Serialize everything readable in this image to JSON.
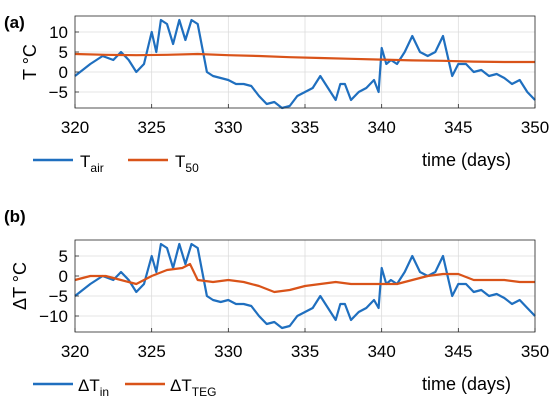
{
  "chart_data": [
    {
      "type": "line",
      "panel_label": "(a)",
      "ylabel": "T °C",
      "xlabel": "time (days)",
      "xlim": [
        320,
        350
      ],
      "ylim": [
        -9,
        14
      ],
      "xticks": [
        320,
        325,
        330,
        335,
        340,
        345,
        350
      ],
      "yticks": [
        -5,
        0,
        5,
        10
      ],
      "grid": true,
      "legend_position": "bottom-left",
      "series": [
        {
          "name": "T",
          "name_sub": "air",
          "color": "#1f6fbf",
          "x": [
            320,
            321,
            321.8,
            322.5,
            323,
            323.5,
            324,
            324.5,
            325,
            325.3,
            325.6,
            326,
            326.4,
            326.8,
            327.2,
            327.6,
            328,
            328.3,
            328.6,
            329,
            329.5,
            330,
            330.5,
            331,
            331.5,
            332,
            332.5,
            333,
            333.5,
            334,
            334.5,
            335,
            335.5,
            336,
            336.5,
            337,
            337.3,
            337.6,
            338,
            338.5,
            339,
            339.5,
            339.8,
            340,
            340.3,
            340.6,
            341,
            341.5,
            342,
            342.5,
            343,
            343.5,
            344,
            344.3,
            344.6,
            345,
            345.5,
            346,
            346.5,
            347,
            347.5,
            348,
            348.5,
            349,
            349.5,
            350
          ],
          "y": [
            -1,
            2,
            4,
            3,
            5,
            3,
            0,
            2,
            10,
            5,
            13,
            12,
            7,
            13,
            8,
            13,
            12,
            6,
            0,
            -1,
            -1.5,
            -2,
            -3,
            -3,
            -3.5,
            -6,
            -8,
            -7.5,
            -9,
            -8.5,
            -6,
            -5,
            -4,
            -1,
            -4,
            -7,
            -3,
            -3,
            -7,
            -5,
            -4,
            -2,
            -5,
            6,
            2,
            3,
            2,
            5,
            9,
            5,
            4,
            5,
            9,
            4,
            -1,
            2,
            2,
            0,
            0.5,
            -1,
            -0.5,
            -1.5,
            -3,
            -2,
            -5,
            -7
          ]
        },
        {
          "name": "T",
          "name_sub": "50",
          "color": "#d95319",
          "x": [
            320,
            322,
            324,
            326,
            328,
            330,
            332,
            334,
            336,
            338,
            340,
            342,
            344,
            346,
            348,
            350
          ],
          "y": [
            4.5,
            4.3,
            4.2,
            4.3,
            4.5,
            4.2,
            4.0,
            3.7,
            3.5,
            3.3,
            3.1,
            2.9,
            2.8,
            2.6,
            2.5,
            2.5
          ]
        }
      ]
    },
    {
      "type": "line",
      "panel_label": "(b)",
      "ylabel": "ΔT °C",
      "xlabel": "time (days)",
      "xlim": [
        320,
        350
      ],
      "ylim": [
        -14,
        9
      ],
      "xticks": [
        320,
        325,
        330,
        335,
        340,
        345,
        350
      ],
      "yticks": [
        -10,
        -5,
        0,
        5
      ],
      "grid": true,
      "legend_position": "bottom-left",
      "series": [
        {
          "name": "ΔT",
          "name_sub": "in",
          "color": "#1f6fbf",
          "x": [
            320,
            321,
            321.8,
            322.5,
            323,
            323.5,
            324,
            324.5,
            325,
            325.3,
            325.6,
            326,
            326.4,
            326.8,
            327.2,
            327.6,
            328,
            328.3,
            328.6,
            329,
            329.5,
            330,
            330.5,
            331,
            331.5,
            332,
            332.5,
            333,
            333.5,
            334,
            334.5,
            335,
            335.5,
            336,
            336.5,
            337,
            337.3,
            337.6,
            338,
            338.5,
            339,
            339.5,
            339.8,
            340,
            340.3,
            340.6,
            341,
            341.5,
            342,
            342.5,
            343,
            343.5,
            344,
            344.3,
            344.6,
            345,
            345.5,
            346,
            346.5,
            347,
            347.5,
            348,
            348.5,
            349,
            349.5,
            350
          ],
          "y": [
            -5,
            -2,
            0,
            -1,
            1,
            -1,
            -4,
            -2,
            5,
            1,
            8,
            7,
            2,
            8,
            3,
            8,
            7,
            1,
            -5,
            -6,
            -6.5,
            -6,
            -7,
            -7,
            -7.5,
            -10,
            -12,
            -11.5,
            -13,
            -12.5,
            -10,
            -9,
            -8,
            -5,
            -8,
            -11,
            -7,
            -7,
            -11,
            -9,
            -8,
            -6,
            -8,
            2,
            -2,
            -1,
            -2,
            1,
            5,
            1,
            0,
            1,
            5,
            0,
            -5,
            -2,
            -2,
            -4,
            -3.5,
            -5,
            -4.5,
            -5.5,
            -7,
            -6,
            -8,
            -10
          ]
        },
        {
          "name": "ΔT",
          "name_sub": "TEG",
          "color": "#d95319",
          "x": [
            320,
            321,
            322,
            323,
            324,
            325,
            326,
            327,
            327.5,
            328,
            329,
            330,
            331,
            332,
            333,
            334,
            335,
            336,
            337,
            338,
            339,
            340,
            341,
            342,
            343,
            344,
            345,
            346,
            347,
            348,
            349,
            350
          ],
          "y": [
            -1,
            0,
            0,
            -1,
            -2,
            0,
            1.5,
            2,
            3,
            -1,
            -1.5,
            -1,
            -1.5,
            -2.5,
            -4,
            -3.5,
            -2.5,
            -2,
            -1.5,
            -2,
            -2,
            -2,
            -2,
            -1,
            0,
            0.5,
            0.5,
            -1,
            -1,
            -1,
            -1.5,
            -1.5
          ]
        }
      ]
    }
  ]
}
